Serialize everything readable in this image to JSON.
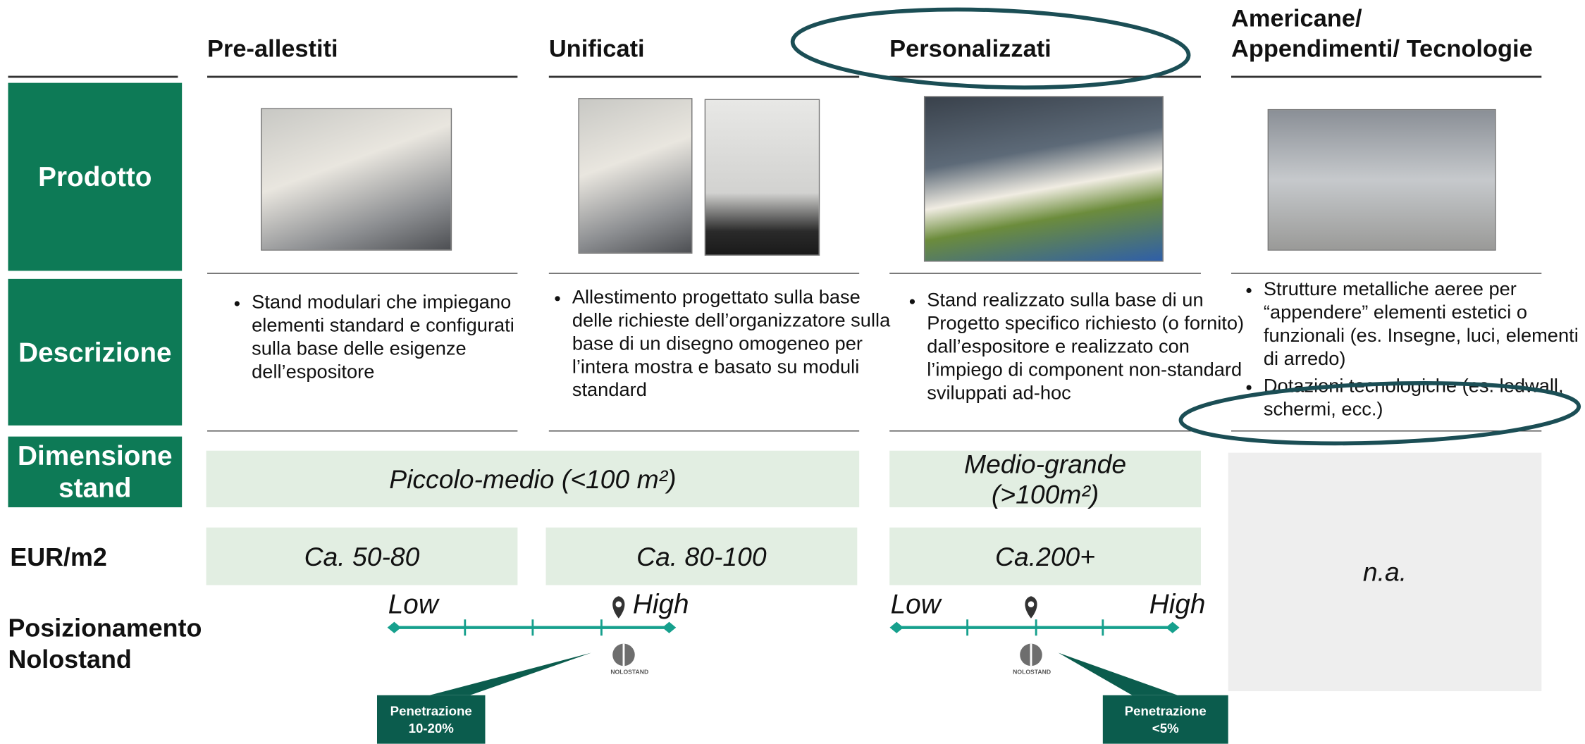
{
  "columns": [
    "Pre-allestiti",
    "Unificati",
    "Personalizzati",
    "Americane/\nAppendimenti/ Tecnologie"
  ],
  "row_labels": [
    "Prodotto",
    "Descrizione",
    "Dimensione\nstand",
    "EUR/m2",
    "Posizionamento\nNolostand"
  ],
  "descriptions": [
    [
      "Stand modulari che impiegano elementi standard e configurati sulla base delle esigenze dell’espositore"
    ],
    [
      "Allestimento progettato sulla base delle richieste dell’organizzatore sulla base di un disegno omogeneo per l’intera mostra e basato su moduli standard"
    ],
    [
      "Stand realizzato sulla base di un Progetto specifico richiesto (o fornito) dall’espositore e realizzato con l’impiego di component non-standard sviluppati ad-hoc"
    ],
    [
      "Strutture metalliche aeree per “appendere” elementi estetici o funzionali (es. Insegne, luci, elementi di arredo)",
      "Dotazioni tecnologiche (es. ledwall, schermi, ecc.)"
    ]
  ],
  "dimensions": [
    "Piccolo-medio (<100 m²)",
    "Medio-grande\n(>100m²)"
  ],
  "prices": [
    "Ca. 50-80",
    "Ca. 80-100",
    "Ca.200+",
    "n.a."
  ],
  "positioning": [
    {
      "low": "Low",
      "high": "High",
      "logo": "NOLOSTAND",
      "callout": "Penetrazione\n10-20%"
    },
    {
      "low": "Low",
      "high": "High",
      "logo": "NOLOSTAND",
      "callout": "Penetrazione\n<5%"
    }
  ]
}
